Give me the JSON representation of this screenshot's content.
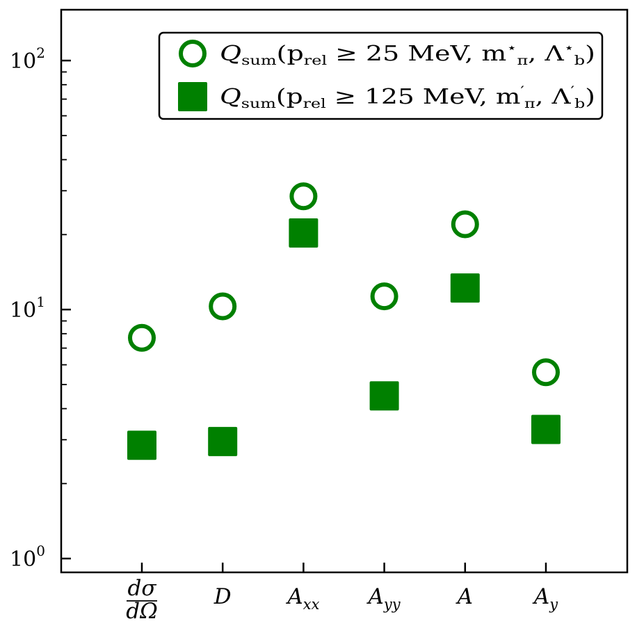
{
  "chart_data": {
    "type": "scatter",
    "title": "",
    "xlabel": "",
    "ylabel": "",
    "yscale": "log",
    "ylim": [
      0.88,
      160
    ],
    "categories": [
      {
        "key": "dsigma",
        "num": "dσ",
        "den": "dΩ"
      },
      {
        "key": "D",
        "main": "D",
        "sub": ""
      },
      {
        "key": "Axx",
        "main": "A",
        "sub": "xx"
      },
      {
        "key": "Ayy",
        "main": "A",
        "sub": "yy"
      },
      {
        "key": "A",
        "main": "A",
        "sub": ""
      },
      {
        "key": "Ay",
        "main": "A",
        "sub": "y"
      }
    ],
    "yticks": [
      {
        "value": 1,
        "base": "10",
        "exp": "0"
      },
      {
        "value": 10,
        "base": "10",
        "exp": "1"
      },
      {
        "value": 100,
        "base": "10",
        "exp": "2"
      }
    ],
    "grid": false,
    "legend_position": "top-right",
    "series": [
      {
        "name_parts": {
          "q": "Q",
          "qsub": "sum",
          "open": "(p",
          "psub": "rel",
          "rest": " ≥ 25 MeV, m",
          "msup": "⋆",
          "msub": "π",
          "comma": ", Λ",
          "lsup": "⋆",
          "lsub": "b",
          "close": ")"
        },
        "marker": "open-circle",
        "color": "#008000",
        "values": [
          7.7,
          10.3,
          28.5,
          11.3,
          22.0,
          5.6
        ]
      },
      {
        "name_parts": {
          "q": "Q",
          "qsub": "sum",
          "open": "(p",
          "psub": "rel",
          "rest": " ≥ 125 MeV, m",
          "msup": "′",
          "msub": "π",
          "comma": ", Λ",
          "lsup": "′",
          "lsub": "b",
          "close": ")"
        },
        "marker": "filled-square",
        "color": "#008000",
        "values": [
          2.85,
          2.95,
          20.3,
          4.5,
          12.2,
          3.3
        ]
      }
    ]
  }
}
